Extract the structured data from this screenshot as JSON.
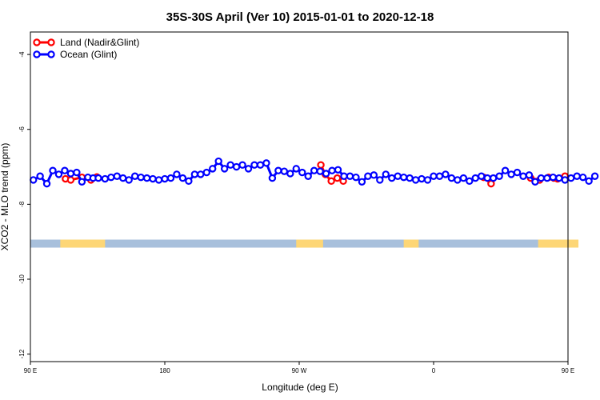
{
  "chart_data": {
    "type": "line",
    "title": "35S-30S April (Ver 10)   2015-01-01 to 2020-12-18",
    "xlabel": "Longitude (deg E)",
    "ylabel": "XCO2 - MLO trend (ppm)",
    "xlim": [
      90,
      450
    ],
    "ylim": [
      -12.2,
      -3.4
    ],
    "x_ticks": [
      {
        "value": 90,
        "label": "90 E"
      },
      {
        "value": 180,
        "label": "180"
      },
      {
        "value": 270,
        "label": "90 W"
      },
      {
        "value": 360,
        "label": "0"
      },
      {
        "value": 450,
        "label": "90 E"
      },
      {
        "value": 540,
        "label": "180"
      }
    ],
    "y_ticks": [
      -4,
      -6,
      -8,
      -10,
      -12
    ],
    "grid": false,
    "legend_position": "top-left",
    "series": [
      {
        "name": "Land (Nadir&Glint)",
        "color": "#ff0000",
        "points": [
          [
            113.5,
            -7.32
          ],
          [
            117,
            -7.35
          ],
          [
            124.5,
            -7.28
          ],
          [
            130.5,
            -7.35
          ],
          [
            134.5,
            -7.27
          ],
          [
            284.5,
            -6.95
          ],
          [
            287.5,
            -7.2
          ],
          [
            291.5,
            -7.38
          ],
          [
            295.5,
            -7.3
          ],
          [
            299.5,
            -7.38
          ],
          [
            393.5,
            -7.28
          ],
          [
            398.5,
            -7.45
          ],
          [
            425,
            -7.3
          ],
          [
            431,
            -7.35
          ],
          [
            437,
            -7.28
          ],
          [
            440.5,
            -7.3
          ],
          [
            443,
            -7.32
          ],
          [
            448,
            -7.25
          ]
        ]
      },
      {
        "name": "Ocean (Glint)",
        "color": "#0000ff",
        "points": [
          [
            92,
            -7.35
          ],
          [
            96.5,
            -7.25
          ],
          [
            101,
            -7.45
          ],
          [
            105,
            -7.1
          ],
          [
            109,
            -7.2
          ],
          [
            113,
            -7.1
          ],
          [
            117,
            -7.18
          ],
          [
            121,
            -7.15
          ],
          [
            124.5,
            -7.4
          ],
          [
            128.5,
            -7.28
          ],
          [
            132,
            -7.3
          ],
          [
            135.5,
            -7.3
          ],
          [
            140,
            -7.32
          ],
          [
            144,
            -7.28
          ],
          [
            148,
            -7.25
          ],
          [
            152,
            -7.3
          ],
          [
            156,
            -7.35
          ],
          [
            160,
            -7.25
          ],
          [
            164,
            -7.28
          ],
          [
            168,
            -7.3
          ],
          [
            172,
            -7.32
          ],
          [
            176,
            -7.35
          ],
          [
            180,
            -7.32
          ],
          [
            184,
            -7.3
          ],
          [
            188,
            -7.2
          ],
          [
            192,
            -7.3
          ],
          [
            196,
            -7.38
          ],
          [
            200,
            -7.2
          ],
          [
            204,
            -7.2
          ],
          [
            208,
            -7.15
          ],
          [
            212,
            -7.05
          ],
          [
            216,
            -6.85
          ],
          [
            220,
            -7.05
          ],
          [
            224,
            -6.95
          ],
          [
            228,
            -7.0
          ],
          [
            232,
            -6.95
          ],
          [
            236,
            -7.05
          ],
          [
            240,
            -6.95
          ],
          [
            244,
            -6.95
          ],
          [
            248,
            -6.9
          ],
          [
            252,
            -7.3
          ],
          [
            256,
            -7.1
          ],
          [
            260,
            -7.12
          ],
          [
            264,
            -7.18
          ],
          [
            268,
            -7.05
          ],
          [
            272,
            -7.15
          ],
          [
            276,
            -7.25
          ],
          [
            280,
            -7.1
          ],
          [
            284,
            -7.12
          ],
          [
            288,
            -7.18
          ],
          [
            292,
            -7.1
          ],
          [
            296,
            -7.08
          ],
          [
            300,
            -7.25
          ],
          [
            304,
            -7.25
          ],
          [
            308,
            -7.28
          ],
          [
            312,
            -7.4
          ],
          [
            316,
            -7.25
          ],
          [
            320,
            -7.22
          ],
          [
            324,
            -7.35
          ],
          [
            328,
            -7.2
          ],
          [
            332,
            -7.3
          ],
          [
            336,
            -7.25
          ],
          [
            340,
            -7.28
          ],
          [
            344,
            -7.3
          ],
          [
            348,
            -7.35
          ],
          [
            352,
            -7.32
          ],
          [
            356,
            -7.35
          ],
          [
            360,
            -7.25
          ],
          [
            364,
            -7.25
          ],
          [
            368,
            -7.2
          ],
          [
            372,
            -7.3
          ],
          [
            376,
            -7.35
          ],
          [
            380,
            -7.3
          ],
          [
            384,
            -7.38
          ],
          [
            388,
            -7.3
          ],
          [
            392,
            -7.25
          ],
          [
            396,
            -7.3
          ],
          [
            400,
            -7.3
          ],
          [
            404,
            -7.25
          ],
          [
            408,
            -7.1
          ],
          [
            412,
            -7.2
          ],
          [
            416,
            -7.15
          ],
          [
            420,
            -7.25
          ],
          [
            424,
            -7.22
          ],
          [
            428,
            -7.4
          ],
          [
            432,
            -7.3
          ],
          [
            436,
            -7.3
          ],
          [
            440,
            -7.28
          ],
          [
            444,
            -7.3
          ],
          [
            448,
            -7.35
          ],
          [
            452,
            -7.3
          ],
          [
            456,
            -7.25
          ],
          [
            460,
            -7.28
          ],
          [
            464,
            -7.38
          ],
          [
            468,
            -7.25
          ]
        ]
      }
    ],
    "land_band": {
      "y_level": -9.05,
      "ocean_color": "#a8c0dc",
      "land_color": "#fdd676",
      "land_segments": [
        [
          110,
          140
        ],
        [
          268,
          286
        ],
        [
          340,
          350
        ],
        [
          430,
          457
        ]
      ]
    }
  }
}
